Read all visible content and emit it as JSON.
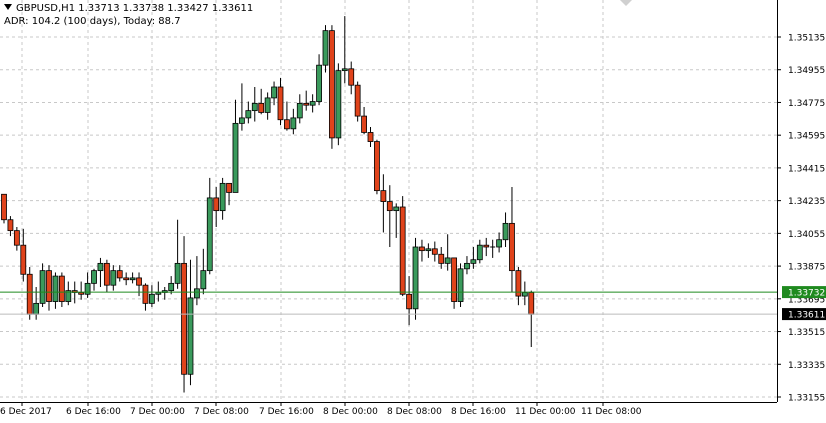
{
  "header": {
    "title": "GBPUSD,H1  1.33713 1.33738 1.33427 1.33611",
    "indicator": "ADR: 104.2 (100 days), Today: 88.7"
  },
  "colors": {
    "bull": "#3a9a5c",
    "bear": "#e0431b",
    "wick": "#000000",
    "grid": "#c8c8c8",
    "hline": "#1f8a1f",
    "ask_label_bg": "#1f8a1f",
    "bid_label_bg": "#000000"
  },
  "chart_data": {
    "type": "candlestick",
    "symbol": "GBPUSD",
    "timeframe": "H1",
    "x_labels": [
      "6 Dec 2017",
      "6 Dec 16:00",
      "7 Dec 00:00",
      "7 Dec 08:00",
      "7 Dec 16:00",
      "8 Dec 00:00",
      "8 Dec 08:00",
      "8 Dec 16:00",
      "11 Dec 00:00",
      "11 Dec 08:00"
    ],
    "y_ticks": [
      "1.35135",
      "1.34955",
      "1.34775",
      "1.34595",
      "1.34415",
      "1.34235",
      "1.34055",
      "1.33875",
      "1.33695",
      "1.33515",
      "1.33335",
      "1.33155"
    ],
    "ylim": [
      1.3313,
      1.3525
    ],
    "hline_price": 1.33732,
    "hline_label": "1.33732",
    "bid_price": 1.33611,
    "bid_label": "1.33611",
    "grid": true,
    "candles": [
      {
        "o": 1.3427,
        "h": 1.3427,
        "l": 1.3411,
        "c": 1.3413
      },
      {
        "o": 1.3413,
        "h": 1.3415,
        "l": 1.3404,
        "c": 1.3407
      },
      {
        "o": 1.3407,
        "h": 1.3409,
        "l": 1.3396,
        "c": 1.3399
      },
      {
        "o": 1.3399,
        "h": 1.3408,
        "l": 1.3379,
        "c": 1.3383
      },
      {
        "o": 1.3383,
        "h": 1.3387,
        "l": 1.3358,
        "c": 1.3361
      },
      {
        "o": 1.3361,
        "h": 1.3376,
        "l": 1.3358,
        "c": 1.3367
      },
      {
        "o": 1.3367,
        "h": 1.3389,
        "l": 1.3365,
        "c": 1.3385
      },
      {
        "o": 1.3385,
        "h": 1.3388,
        "l": 1.3363,
        "c": 1.3368
      },
      {
        "o": 1.3368,
        "h": 1.3384,
        "l": 1.3364,
        "c": 1.3382
      },
      {
        "o": 1.3382,
        "h": 1.3384,
        "l": 1.3365,
        "c": 1.3368
      },
      {
        "o": 1.3368,
        "h": 1.3379,
        "l": 1.3366,
        "c": 1.3374
      },
      {
        "o": 1.3374,
        "h": 1.3379,
        "l": 1.3367,
        "c": 1.3373
      },
      {
        "o": 1.3373,
        "h": 1.3379,
        "l": 1.3369,
        "c": 1.3372
      },
      {
        "o": 1.3372,
        "h": 1.3384,
        "l": 1.337,
        "c": 1.3378
      },
      {
        "o": 1.3378,
        "h": 1.3386,
        "l": 1.3374,
        "c": 1.3385
      },
      {
        "o": 1.3385,
        "h": 1.3392,
        "l": 1.3376,
        "c": 1.3389
      },
      {
        "o": 1.3389,
        "h": 1.3391,
        "l": 1.3373,
        "c": 1.3377
      },
      {
        "o": 1.3377,
        "h": 1.3388,
        "l": 1.3374,
        "c": 1.3385
      },
      {
        "o": 1.3385,
        "h": 1.3388,
        "l": 1.3379,
        "c": 1.3381
      },
      {
        "o": 1.3381,
        "h": 1.3384,
        "l": 1.3377,
        "c": 1.338
      },
      {
        "o": 1.338,
        "h": 1.3384,
        "l": 1.3378,
        "c": 1.3381
      },
      {
        "o": 1.3381,
        "h": 1.3384,
        "l": 1.3371,
        "c": 1.3377
      },
      {
        "o": 1.3377,
        "h": 1.3378,
        "l": 1.3363,
        "c": 1.3367
      },
      {
        "o": 1.3367,
        "h": 1.3377,
        "l": 1.3365,
        "c": 1.3372
      },
      {
        "o": 1.3372,
        "h": 1.3379,
        "l": 1.3368,
        "c": 1.3373
      },
      {
        "o": 1.3373,
        "h": 1.3376,
        "l": 1.3369,
        "c": 1.3374
      },
      {
        "o": 1.3374,
        "h": 1.3382,
        "l": 1.3372,
        "c": 1.3378
      },
      {
        "o": 1.3378,
        "h": 1.3413,
        "l": 1.3375,
        "c": 1.3389
      },
      {
        "o": 1.3389,
        "h": 1.3404,
        "l": 1.3318,
        "c": 1.3328
      },
      {
        "o": 1.3328,
        "h": 1.3391,
        "l": 1.3322,
        "c": 1.337
      },
      {
        "o": 1.337,
        "h": 1.3393,
        "l": 1.3366,
        "c": 1.3375
      },
      {
        "o": 1.3375,
        "h": 1.3397,
        "l": 1.3372,
        "c": 1.3385
      },
      {
        "o": 1.3385,
        "h": 1.3436,
        "l": 1.3383,
        "c": 1.3425
      },
      {
        "o": 1.3425,
        "h": 1.3431,
        "l": 1.3409,
        "c": 1.3418
      },
      {
        "o": 1.3418,
        "h": 1.3436,
        "l": 1.3413,
        "c": 1.3433
      },
      {
        "o": 1.3433,
        "h": 1.3433,
        "l": 1.3421,
        "c": 1.3428
      },
      {
        "o": 1.3428,
        "h": 1.3479,
        "l": 1.3428,
        "c": 1.3466
      },
      {
        "o": 1.3466,
        "h": 1.3488,
        "l": 1.3462,
        "c": 1.3469
      },
      {
        "o": 1.3469,
        "h": 1.3478,
        "l": 1.3466,
        "c": 1.3473
      },
      {
        "o": 1.3473,
        "h": 1.3486,
        "l": 1.3467,
        "c": 1.3477
      },
      {
        "o": 1.3477,
        "h": 1.3485,
        "l": 1.3471,
        "c": 1.3472
      },
      {
        "o": 1.3472,
        "h": 1.3483,
        "l": 1.3468,
        "c": 1.348
      },
      {
        "o": 1.348,
        "h": 1.3489,
        "l": 1.3476,
        "c": 1.3486
      },
      {
        "o": 1.3486,
        "h": 1.3491,
        "l": 1.3465,
        "c": 1.3468
      },
      {
        "o": 1.3468,
        "h": 1.3478,
        "l": 1.3462,
        "c": 1.3463
      },
      {
        "o": 1.3463,
        "h": 1.3474,
        "l": 1.346,
        "c": 1.3469
      },
      {
        "o": 1.3469,
        "h": 1.3482,
        "l": 1.3466,
        "c": 1.3477
      },
      {
        "o": 1.3477,
        "h": 1.3484,
        "l": 1.3473,
        "c": 1.3476
      },
      {
        "o": 1.3476,
        "h": 1.3482,
        "l": 1.3472,
        "c": 1.3478
      },
      {
        "o": 1.3478,
        "h": 1.3504,
        "l": 1.3476,
        "c": 1.3498
      },
      {
        "o": 1.3498,
        "h": 1.352,
        "l": 1.3494,
        "c": 1.3517
      },
      {
        "o": 1.3517,
        "h": 1.352,
        "l": 1.3452,
        "c": 1.3458
      },
      {
        "o": 1.3458,
        "h": 1.3499,
        "l": 1.3454,
        "c": 1.3495
      },
      {
        "o": 1.3495,
        "h": 1.3525,
        "l": 1.3488,
        "c": 1.3496
      },
      {
        "o": 1.3496,
        "h": 1.35,
        "l": 1.3482,
        "c": 1.3487
      },
      {
        "o": 1.3487,
        "h": 1.3489,
        "l": 1.3467,
        "c": 1.347
      },
      {
        "o": 1.347,
        "h": 1.3475,
        "l": 1.346,
        "c": 1.3461
      },
      {
        "o": 1.3461,
        "h": 1.3464,
        "l": 1.3453,
        "c": 1.3456
      },
      {
        "o": 1.3456,
        "h": 1.3457,
        "l": 1.3427,
        "c": 1.3429
      },
      {
        "o": 1.3429,
        "h": 1.3438,
        "l": 1.3406,
        "c": 1.3423
      },
      {
        "o": 1.3423,
        "h": 1.3432,
        "l": 1.3398,
        "c": 1.3418
      },
      {
        "o": 1.3418,
        "h": 1.3422,
        "l": 1.3403,
        "c": 1.342
      },
      {
        "o": 1.342,
        "h": 1.3426,
        "l": 1.3371,
        "c": 1.3372
      },
      {
        "o": 1.3372,
        "h": 1.3382,
        "l": 1.3355,
        "c": 1.3364
      },
      {
        "o": 1.3364,
        "h": 1.3403,
        "l": 1.3358,
        "c": 1.3398
      },
      {
        "o": 1.3398,
        "h": 1.3402,
        "l": 1.339,
        "c": 1.3396
      },
      {
        "o": 1.3396,
        "h": 1.34,
        "l": 1.3392,
        "c": 1.3397
      },
      {
        "o": 1.3397,
        "h": 1.3401,
        "l": 1.339,
        "c": 1.3394
      },
      {
        "o": 1.3394,
        "h": 1.3398,
        "l": 1.3386,
        "c": 1.3389
      },
      {
        "o": 1.3389,
        "h": 1.3405,
        "l": 1.3385,
        "c": 1.3392
      },
      {
        "o": 1.3392,
        "h": 1.3392,
        "l": 1.3364,
        "c": 1.3368
      },
      {
        "o": 1.3368,
        "h": 1.3389,
        "l": 1.3365,
        "c": 1.3386
      },
      {
        "o": 1.3386,
        "h": 1.3393,
        "l": 1.3383,
        "c": 1.3389
      },
      {
        "o": 1.3389,
        "h": 1.3398,
        "l": 1.3386,
        "c": 1.3391
      },
      {
        "o": 1.3391,
        "h": 1.3402,
        "l": 1.3389,
        "c": 1.3399
      },
      {
        "o": 1.3399,
        "h": 1.3403,
        "l": 1.3393,
        "c": 1.3398
      },
      {
        "o": 1.3398,
        "h": 1.3402,
        "l": 1.3392,
        "c": 1.3398
      },
      {
        "o": 1.3398,
        "h": 1.3406,
        "l": 1.3395,
        "c": 1.3402
      },
      {
        "o": 1.3402,
        "h": 1.3417,
        "l": 1.3398,
        "c": 1.3411
      },
      {
        "o": 1.3411,
        "h": 1.3431,
        "l": 1.3373,
        "c": 1.3385
      },
      {
        "o": 1.3385,
        "h": 1.3387,
        "l": 1.3366,
        "c": 1.3371
      },
      {
        "o": 1.3371,
        "h": 1.3379,
        "l": 1.3366,
        "c": 1.3373
      },
      {
        "o": 1.3373,
        "h": 1.3374,
        "l": 1.3343,
        "c": 1.3361
      }
    ]
  }
}
